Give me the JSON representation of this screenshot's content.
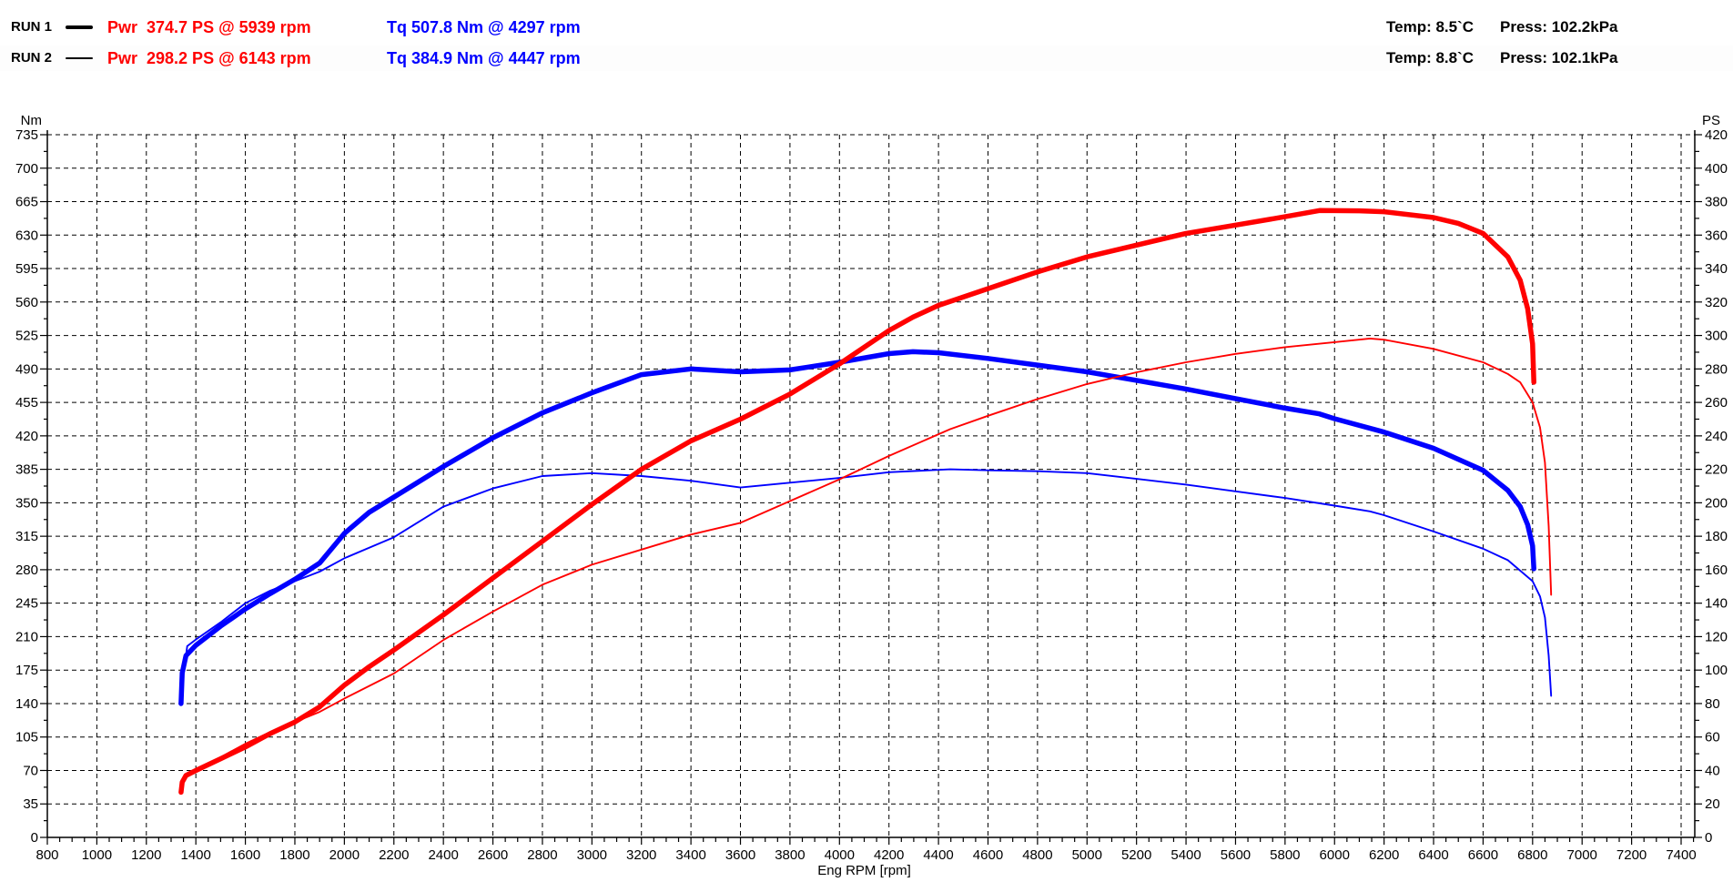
{
  "header": {
    "runs": [
      {
        "label": "RUN 1",
        "pwr": "Pwr  374.7 PS @ 5939 rpm",
        "tq": "Tq 507.8 Nm @ 4297 rpm",
        "temp": "Temp: 8.5`C",
        "press": "Press: 102.2kPa"
      },
      {
        "label": "RUN 2",
        "pwr": "Pwr  298.2 PS @ 6143 rpm",
        "tq": "Tq 384.9 Nm @ 4447 rpm",
        "temp": "Temp: 8.8`C",
        "press": "Press: 102.1kPa"
      }
    ]
  },
  "colors": {
    "power": "#ff0000",
    "torque": "#0000ff",
    "axis": "#000000",
    "background": "#ffffff"
  },
  "chart_data": {
    "type": "line",
    "title": "",
    "grid": "dashed",
    "x_axis": {
      "label": "Eng RPM [rpm]",
      "min": 800,
      "max": 7400,
      "major_step": 200,
      "minor_step": 50,
      "ticks": [
        800,
        1000,
        1200,
        1400,
        1600,
        1800,
        2000,
        2200,
        2400,
        2600,
        2800,
        3000,
        3200,
        3400,
        3600,
        3800,
        4000,
        4200,
        4400,
        4600,
        4800,
        5000,
        5200,
        5400,
        5600,
        5800,
        6000,
        6200,
        6400,
        6600,
        6800,
        7000,
        7200,
        7400
      ]
    },
    "y_axis_left": {
      "label": "Nm",
      "min": 0,
      "max": 735,
      "major_step": 35,
      "minor_step": 17.5,
      "ticks": [
        735,
        700,
        665,
        630,
        595,
        560,
        525,
        490,
        455,
        420,
        385,
        350,
        315,
        280,
        245,
        210,
        175,
        140,
        105,
        70,
        35,
        0
      ]
    },
    "y_axis_right": {
      "label": "PS",
      "min": 0,
      "max": 420,
      "major_step": 20,
      "minor_step": 10,
      "ticks": [
        420,
        400,
        380,
        360,
        340,
        320,
        300,
        280,
        260,
        240,
        220,
        200,
        180,
        160,
        140,
        120,
        100,
        80,
        60,
        40,
        20,
        0
      ]
    },
    "series": [
      {
        "id": "run2-torque",
        "name": "RUN 2 Torque",
        "run": "RUN 2",
        "unit": "Nm",
        "axis": "left",
        "color": "#0000ff",
        "thickness": "thin",
        "peak": {
          "value": 384.9,
          "rpm": 4447
        },
        "points": [
          [
            1360,
            190
          ],
          [
            1365,
            200
          ],
          [
            1400,
            207
          ],
          [
            1500,
            225
          ],
          [
            1600,
            245
          ],
          [
            1700,
            258
          ],
          [
            1800,
            268
          ],
          [
            1900,
            278
          ],
          [
            2000,
            292
          ],
          [
            2200,
            314
          ],
          [
            2400,
            346
          ],
          [
            2600,
            365
          ],
          [
            2800,
            378
          ],
          [
            3000,
            381
          ],
          [
            3200,
            378
          ],
          [
            3400,
            373
          ],
          [
            3600,
            366
          ],
          [
            3800,
            371
          ],
          [
            4000,
            376
          ],
          [
            4200,
            382
          ],
          [
            4447,
            385
          ],
          [
            4600,
            384
          ],
          [
            4800,
            383
          ],
          [
            5000,
            381
          ],
          [
            5200,
            375
          ],
          [
            5400,
            369
          ],
          [
            5600,
            362
          ],
          [
            5800,
            355
          ],
          [
            6000,
            347
          ],
          [
            6143,
            341
          ],
          [
            6200,
            337
          ],
          [
            6400,
            320
          ],
          [
            6600,
            302
          ],
          [
            6700,
            290
          ],
          [
            6800,
            268
          ],
          [
            6830,
            252
          ],
          [
            6850,
            230
          ],
          [
            6865,
            190
          ],
          [
            6875,
            148
          ]
        ]
      },
      {
        "id": "run1-torque",
        "name": "RUN 1 Torque",
        "run": "RUN 1",
        "unit": "Nm",
        "axis": "left",
        "color": "#0000ff",
        "thickness": "thick",
        "peak": {
          "value": 507.8,
          "rpm": 4297
        },
        "points": [
          [
            1340,
            140
          ],
          [
            1345,
            172
          ],
          [
            1360,
            190
          ],
          [
            1400,
            201
          ],
          [
            1500,
            221
          ],
          [
            1600,
            239
          ],
          [
            1700,
            255
          ],
          [
            1800,
            270
          ],
          [
            1900,
            287
          ],
          [
            2000,
            318
          ],
          [
            2100,
            340
          ],
          [
            2200,
            356
          ],
          [
            2400,
            388
          ],
          [
            2600,
            418
          ],
          [
            2800,
            444
          ],
          [
            3000,
            465
          ],
          [
            3200,
            484
          ],
          [
            3400,
            490
          ],
          [
            3600,
            487
          ],
          [
            3800,
            489
          ],
          [
            4000,
            497
          ],
          [
            4200,
            506
          ],
          [
            4297,
            508
          ],
          [
            4400,
            507
          ],
          [
            4600,
            501
          ],
          [
            4800,
            494
          ],
          [
            5000,
            487
          ],
          [
            5200,
            478
          ],
          [
            5400,
            469
          ],
          [
            5600,
            459
          ],
          [
            5800,
            449
          ],
          [
            5939,
            443
          ],
          [
            6000,
            438
          ],
          [
            6200,
            424
          ],
          [
            6400,
            407
          ],
          [
            6600,
            384
          ],
          [
            6700,
            363
          ],
          [
            6750,
            346
          ],
          [
            6780,
            327
          ],
          [
            6800,
            305
          ],
          [
            6805,
            281
          ]
        ]
      },
      {
        "id": "run2-power",
        "name": "RUN 2 Power",
        "run": "RUN 2",
        "unit": "PS",
        "axis": "right",
        "color": "#ff0000",
        "thickness": "thin",
        "peak": {
          "value": 298.2,
          "rpm": 6143
        },
        "points": [
          [
            1360,
            37
          ],
          [
            1400,
            41
          ],
          [
            1500,
            48
          ],
          [
            1600,
            56
          ],
          [
            1700,
            63
          ],
          [
            1800,
            69
          ],
          [
            1900,
            75
          ],
          [
            2000,
            83
          ],
          [
            2200,
            98
          ],
          [
            2400,
            118
          ],
          [
            2600,
            135
          ],
          [
            2800,
            151
          ],
          [
            3000,
            163
          ],
          [
            3200,
            172
          ],
          [
            3400,
            181
          ],
          [
            3600,
            188
          ],
          [
            3800,
            201
          ],
          [
            4000,
            214
          ],
          [
            4200,
            228
          ],
          [
            4447,
            244
          ],
          [
            4600,
            252
          ],
          [
            4800,
            262
          ],
          [
            5000,
            271
          ],
          [
            5200,
            278
          ],
          [
            5400,
            284
          ],
          [
            5600,
            289
          ],
          [
            5800,
            293
          ],
          [
            6000,
            296
          ],
          [
            6143,
            298.2
          ],
          [
            6200,
            297.5
          ],
          [
            6400,
            292
          ],
          [
            6600,
            284
          ],
          [
            6700,
            277
          ],
          [
            6750,
            272
          ],
          [
            6800,
            260
          ],
          [
            6830,
            245
          ],
          [
            6850,
            224
          ],
          [
            6865,
            186
          ],
          [
            6875,
            145
          ]
        ]
      },
      {
        "id": "run1-power",
        "name": "RUN 1 Power",
        "run": "RUN 1",
        "unit": "PS",
        "axis": "right",
        "color": "#ff0000",
        "thickness": "thick",
        "peak": {
          "value": 374.7,
          "rpm": 5939
        },
        "points": [
          [
            1340,
            27
          ],
          [
            1345,
            33
          ],
          [
            1360,
            37
          ],
          [
            1400,
            40
          ],
          [
            1500,
            47
          ],
          [
            1600,
            54
          ],
          [
            1700,
            62
          ],
          [
            1800,
            69
          ],
          [
            1900,
            78
          ],
          [
            2000,
            91
          ],
          [
            2100,
            102
          ],
          [
            2200,
            112
          ],
          [
            2400,
            133
          ],
          [
            2600,
            155
          ],
          [
            2800,
            177
          ],
          [
            3000,
            199
          ],
          [
            3200,
            220
          ],
          [
            3400,
            237
          ],
          [
            3600,
            250
          ],
          [
            3800,
            265
          ],
          [
            4000,
            283
          ],
          [
            4200,
            303
          ],
          [
            4297,
            311
          ],
          [
            4400,
            318
          ],
          [
            4600,
            328
          ],
          [
            4800,
            338
          ],
          [
            5000,
            347
          ],
          [
            5200,
            354
          ],
          [
            5400,
            361
          ],
          [
            5600,
            366
          ],
          [
            5800,
            371
          ],
          [
            5939,
            374.7
          ],
          [
            6100,
            374.5
          ],
          [
            6200,
            374
          ],
          [
            6400,
            370.5
          ],
          [
            6500,
            367
          ],
          [
            6600,
            361
          ],
          [
            6700,
            347
          ],
          [
            6750,
            333
          ],
          [
            6780,
            316
          ],
          [
            6800,
            295
          ],
          [
            6805,
            272
          ]
        ]
      }
    ]
  }
}
